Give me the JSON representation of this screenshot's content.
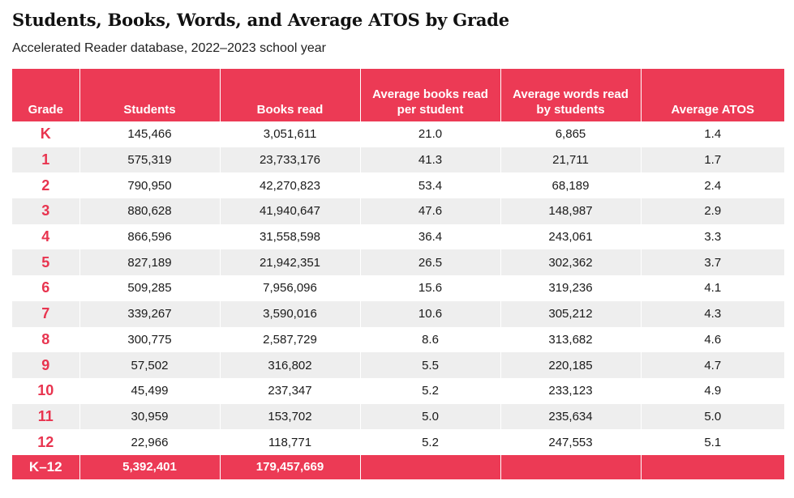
{
  "chart_data": {
    "type": "table",
    "title": "Students, Books, Words, and Average ATOS by Grade",
    "subtitle": "Accelerated Reader database, 2022–2023 school year",
    "columns": [
      "Grade",
      "Students",
      "Books read",
      "Average books read per student",
      "Average words read by students",
      "Average ATOS"
    ],
    "rows": [
      [
        "K",
        "145,466",
        "3,051,611",
        "21.0",
        "6,865",
        "1.4"
      ],
      [
        "1",
        "575,319",
        "23,733,176",
        "41.3",
        "21,711",
        "1.7"
      ],
      [
        "2",
        "790,950",
        "42,270,823",
        "53.4",
        "68,189",
        "2.4"
      ],
      [
        "3",
        "880,628",
        "41,940,647",
        "47.6",
        "148,987",
        "2.9"
      ],
      [
        "4",
        "866,596",
        "31,558,598",
        "36.4",
        "243,061",
        "3.3"
      ],
      [
        "5",
        "827,189",
        "21,942,351",
        "26.5",
        "302,362",
        "3.7"
      ],
      [
        "6",
        "509,285",
        "7,956,096",
        "15.6",
        "319,236",
        "4.1"
      ],
      [
        "7",
        "339,267",
        "3,590,016",
        "10.6",
        "305,212",
        "4.3"
      ],
      [
        "8",
        "300,775",
        "2,587,729",
        "8.6",
        "313,682",
        "4.6"
      ],
      [
        "9",
        "57,502",
        "316,802",
        "5.5",
        "220,185",
        "4.7"
      ],
      [
        "10",
        "45,499",
        "237,347",
        "5.2",
        "233,123",
        "4.9"
      ],
      [
        "11",
        "30,959",
        "153,702",
        "5.0",
        "235,634",
        "5.0"
      ],
      [
        "12",
        "22,966",
        "118,771",
        "5.2",
        "247,553",
        "5.1"
      ]
    ],
    "total": [
      "K–12",
      "5,392,401",
      "179,457,669",
      "",
      "",
      ""
    ]
  },
  "colors": {
    "header_bg": "#ec3a55",
    "grade_text": "#e8344f",
    "stripe": "#eeeeee"
  }
}
